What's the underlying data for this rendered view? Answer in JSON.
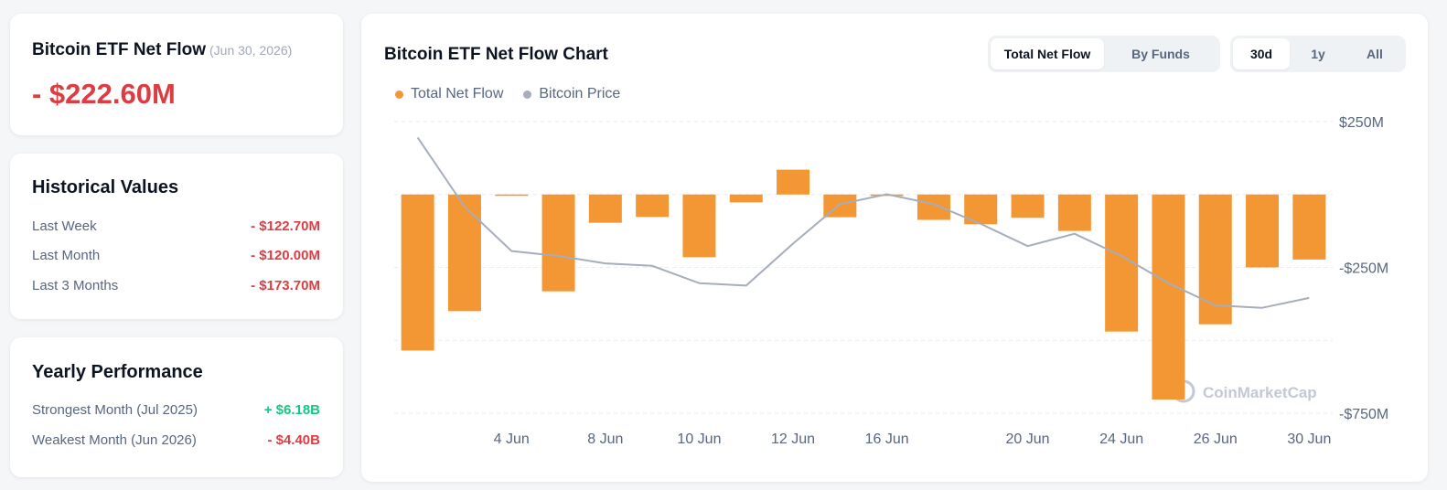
{
  "summary": {
    "title": "Bitcoin ETF Net Flow",
    "date": "(Jun 30, 2026)",
    "value": "- $222.60M"
  },
  "historical": {
    "title": "Historical Values",
    "rows": [
      {
        "label": "Last Week",
        "value": "- $122.70M"
      },
      {
        "label": "Last Month",
        "value": "- $120.00M"
      },
      {
        "label": "Last 3 Months",
        "value": "- $173.70M"
      }
    ]
  },
  "yearly": {
    "title": "Yearly Performance",
    "rows": [
      {
        "label": "Strongest Month",
        "period": "(Jul 2025)",
        "value": "+ $6.18B"
      },
      {
        "label": "Weakest Month",
        "period": "(Jun 2026)",
        "value": "- $4.40B"
      }
    ]
  },
  "chart_panel": {
    "title": "Bitcoin ETF Net Flow Chart",
    "view_tabs": [
      "Total Net Flow",
      "By Funds"
    ],
    "active_view": "Total Net Flow",
    "range_tabs": [
      "30d",
      "1y",
      "All"
    ],
    "active_range": "30d",
    "watermark": "CoinMarketCap"
  },
  "colors": {
    "flow": "#f39634",
    "price": "#a6adbb",
    "negative": "#dd3d42",
    "positive": "#16c784"
  },
  "chart_data": {
    "type": "bar",
    "legend": [
      "Total Net Flow",
      "Bitcoin Price"
    ],
    "legend_position": "top-left",
    "y_axis_side": "right",
    "y_ticks": [
      "$250M",
      "-$250M",
      "-$750M"
    ],
    "y_tick_values": [
      250,
      -250,
      -750
    ],
    "ylim": [
      -750,
      250
    ],
    "grid": "horizontal-dashed",
    "x_ticks": [
      "4 Jun",
      "8 Jun",
      "10 Jun",
      "12 Jun",
      "16 Jun",
      "20 Jun",
      "24 Jun",
      "26 Jun",
      "30 Jun"
    ],
    "x_tick_positions": [
      2,
      4,
      6,
      8,
      10,
      13,
      15,
      17,
      19
    ],
    "series": [
      {
        "name": "Total Net Flow",
        "unit": "USD millions",
        "values": [
          -535,
          -400,
          -3,
          -332,
          -97,
          -77,
          -215,
          -27,
          85,
          -78,
          -5,
          -87,
          -102,
          -80,
          -125,
          -470,
          -703,
          -445,
          -250,
          -223
        ]
      },
      {
        "name": "Bitcoin Price",
        "relative_level_0_to_1": [
          0.98,
          0.7,
          0.52,
          0.5,
          0.47,
          0.46,
          0.39,
          0.38,
          0.55,
          0.71,
          0.75,
          0.71,
          0.63,
          0.54,
          0.59,
          0.5,
          0.39,
          0.3,
          0.29,
          0.33
        ]
      }
    ]
  }
}
